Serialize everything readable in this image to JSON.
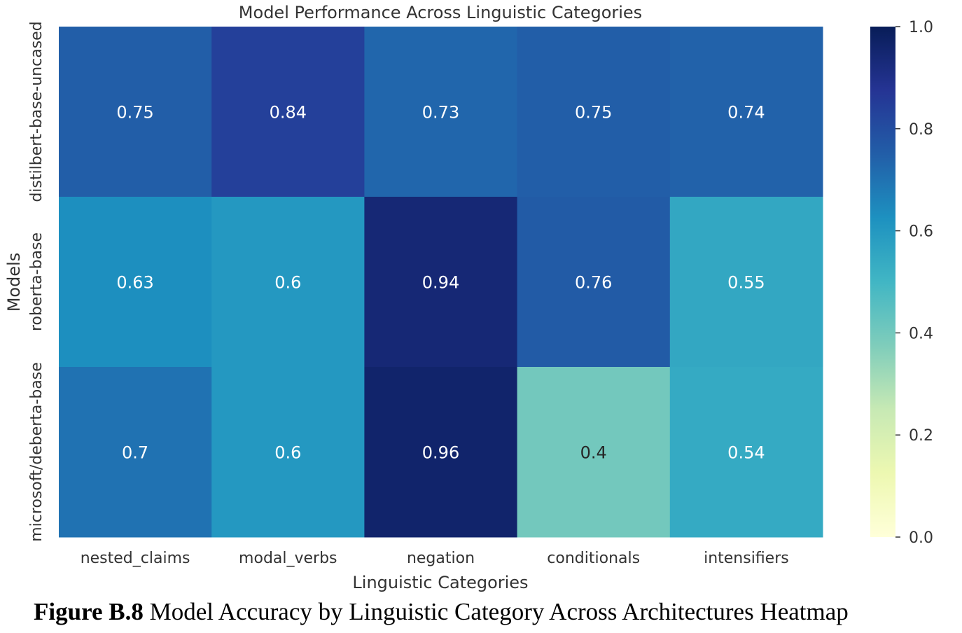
{
  "chart_data": {
    "type": "heatmap",
    "title": "Model Performance Across Linguistic Categories",
    "xlabel": "Linguistic Categories",
    "ylabel": "Models",
    "x_categories": [
      "nested_claims",
      "modal_verbs",
      "negation",
      "conditionals",
      "intensifiers"
    ],
    "y_categories": [
      "distilbert-base-uncased",
      "roberta-base",
      "microsoft/deberta-base"
    ],
    "values": [
      [
        0.75,
        0.84,
        0.73,
        0.75,
        0.74
      ],
      [
        0.63,
        0.6,
        0.94,
        0.76,
        0.55
      ],
      [
        0.7,
        0.6,
        0.96,
        0.4,
        0.54
      ]
    ],
    "annotations": true,
    "colormap": "YlGnBu",
    "colorbar": {
      "range": [
        0.0,
        1.0
      ],
      "ticks": [
        "0.0",
        "0.2",
        "0.4",
        "0.6",
        "0.8",
        "1.0"
      ]
    },
    "grid": false
  },
  "caption": {
    "label": "Figure B.8",
    "text": " Model Accuracy by Linguistic Category Across Architectures Heatmap"
  }
}
